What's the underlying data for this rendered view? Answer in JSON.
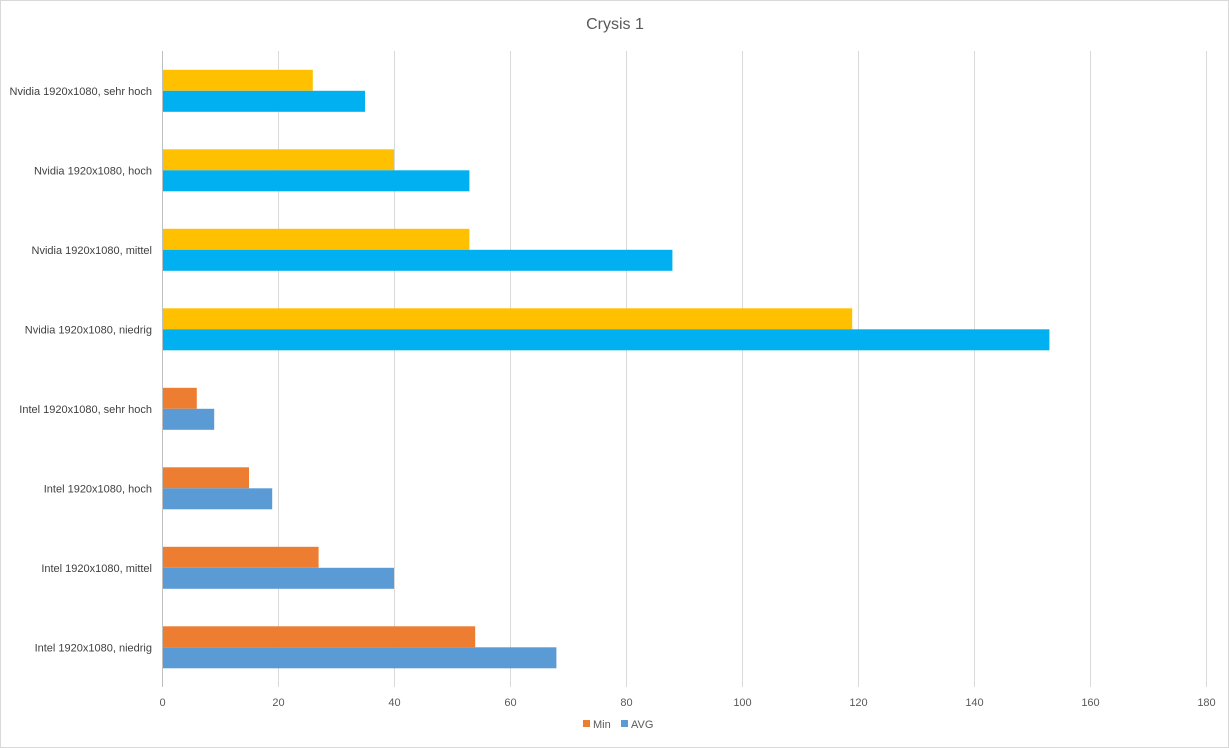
{
  "chart_data": {
    "type": "bar",
    "orientation": "horizontal",
    "title": "Crysis 1",
    "xlabel": "",
    "ylabel": "",
    "xlim": [
      0,
      180
    ],
    "x_ticks": [
      0,
      20,
      40,
      60,
      80,
      100,
      120,
      140,
      160,
      180
    ],
    "grid": true,
    "legend_position": "bottom",
    "categories": [
      "Nvidia 1920x1080, sehr hoch",
      "Nvidia 1920x1080, hoch",
      "Nvidia 1920x1080, mittel",
      "Nvidia 1920x1080, niedrig",
      "Intel 1920x1080, sehr hoch",
      "Intel 1920x1080, hoch",
      "Intel 1920x1080, mittel",
      "Intel 1920x1080, niedrig"
    ],
    "series": [
      {
        "name": "Min",
        "values": [
          26,
          40,
          53,
          119,
          6,
          15,
          27,
          54
        ],
        "point_colors": [
          "#ffc000",
          "#ffc000",
          "#ffc000",
          "#ffc000",
          "#ed7d31",
          "#ed7d31",
          "#ed7d31",
          "#ed7d31"
        ],
        "legend_color": "#ed7d31"
      },
      {
        "name": "AVG",
        "values": [
          35,
          53,
          88,
          153,
          9,
          19,
          40,
          68
        ],
        "point_colors": [
          "#00b0f0",
          "#00b0f0",
          "#00b0f0",
          "#00b0f0",
          "#5b9bd5",
          "#5b9bd5",
          "#5b9bd5",
          "#5b9bd5"
        ],
        "legend_color": "#5b9bd5"
      }
    ]
  }
}
